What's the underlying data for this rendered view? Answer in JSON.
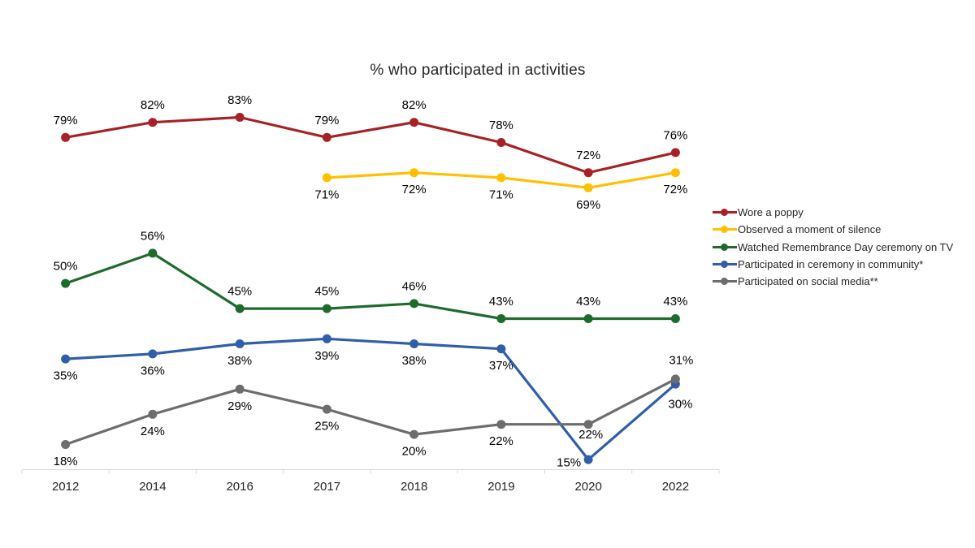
{
  "page": {
    "background": "#ffffff"
  },
  "chart_data": {
    "type": "line",
    "title": "% who participated in activities",
    "categories": [
      "2012",
      "2014",
      "2016",
      "2017",
      "2018",
      "2019",
      "2020",
      "2022"
    ],
    "value_suffix": "%",
    "xlabel": "",
    "ylabel": "",
    "grid": false,
    "y_axis_visible": false,
    "legend_position": "right",
    "axis_color": "#D9D9D9",
    "data_label_color": "#000000",
    "x_tick_label_color": "#262626",
    "series": [
      {
        "name": "Wore a poppy",
        "color": "#A62226",
        "values": [
          79,
          82,
          83,
          79,
          82,
          78,
          72,
          76
        ],
        "label_position": "above"
      },
      {
        "name": "Observed a moment of silence",
        "color": "#FFC000",
        "values": [
          null,
          null,
          null,
          71,
          72,
          71,
          69,
          72
        ],
        "label_position": "below"
      },
      {
        "name": "Watched Remembrance Day ceremony on TV",
        "color": "#1E6B2E",
        "values": [
          50,
          56,
          45,
          45,
          46,
          43,
          43,
          43
        ],
        "label_position": "above"
      },
      {
        "name": "Participated in ceremony in community*",
        "color": "#305EA8",
        "values": [
          35,
          36,
          38,
          39,
          38,
          37,
          15,
          30
        ],
        "label_position": "below",
        "label_overrides": {
          "6": [
            -24,
            4
          ],
          "7": [
            6,
            25
          ]
        }
      },
      {
        "name": "Participated on social media**",
        "color": "#6D6D6D",
        "values": [
          18,
          24,
          29,
          25,
          20,
          22,
          22,
          31
        ],
        "label_position": "below",
        "label_overrides": {
          "6": [
            3,
            13
          ],
          "7": [
            7,
            -23
          ]
        }
      }
    ]
  }
}
